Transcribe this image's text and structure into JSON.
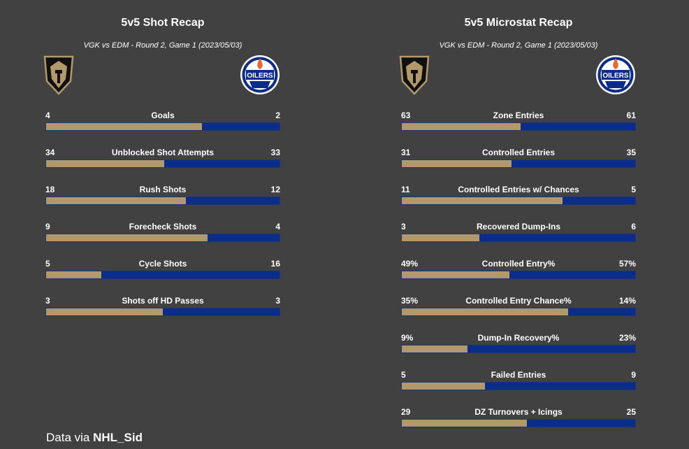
{
  "colors": {
    "background": "#414141",
    "vgk": "#b3996a",
    "edm": "#0a2c8a",
    "text": "#ffffff"
  },
  "logos": {
    "left_team": "vgk-logo-icon",
    "right_team": "edm-oilers-logo-icon"
  },
  "footer": {
    "prefix": "Data via",
    "source": "NHL_Sid"
  },
  "chart_data": [
    {
      "type": "bar",
      "orientation": "horizontal-stacked-share",
      "title": "5v5 Shot Recap",
      "subtitle": "VGK vs EDM - Round 2, Game 1 (2023/05/03)",
      "metrics": [
        {
          "label": "Goals",
          "left": "4",
          "right": "2",
          "share": 0.667
        },
        {
          "label": "Unblocked Shot Attempts",
          "left": "34",
          "right": "33",
          "share": 0.507
        },
        {
          "label": "Rush Shots",
          "left": "18",
          "right": "12",
          "share": 0.6
        },
        {
          "label": "Forecheck Shots",
          "left": "9",
          "right": "4",
          "share": 0.692
        },
        {
          "label": "Cycle Shots",
          "left": "5",
          "right": "16",
          "share": 0.238
        },
        {
          "label": "Shots off HD Passes",
          "left": "3",
          "right": "3",
          "share": 0.5
        }
      ]
    },
    {
      "type": "bar",
      "orientation": "horizontal-stacked-share",
      "title": "5v5 Microstat Recap",
      "subtitle": "VGK vs EDM - Round 2, Game 1 (2023/05/03)",
      "metrics": [
        {
          "label": "Zone Entries",
          "left": "63",
          "right": "61",
          "share": 0.508
        },
        {
          "label": "Controlled Entries",
          "left": "31",
          "right": "35",
          "share": 0.47
        },
        {
          "label": "Controlled Entries w/ Chances",
          "left": "11",
          "right": "5",
          "share": 0.688
        },
        {
          "label": "Recovered Dump-Ins",
          "left": "3",
          "right": "6",
          "share": 0.333
        },
        {
          "label": "Controlled Entry%",
          "left": "49%",
          "right": "57%",
          "share": 0.462
        },
        {
          "label": "Controlled Entry Chance%",
          "left": "35%",
          "right": "14%",
          "share": 0.714
        },
        {
          "label": "Dump-In Recovery%",
          "left": "9%",
          "right": "23%",
          "share": 0.281
        },
        {
          "label": "Failed Entries",
          "left": "5",
          "right": "9",
          "share": 0.357
        },
        {
          "label": "DZ Turnovers + Icings",
          "left": "29",
          "right": "25",
          "share": 0.537
        }
      ]
    }
  ]
}
